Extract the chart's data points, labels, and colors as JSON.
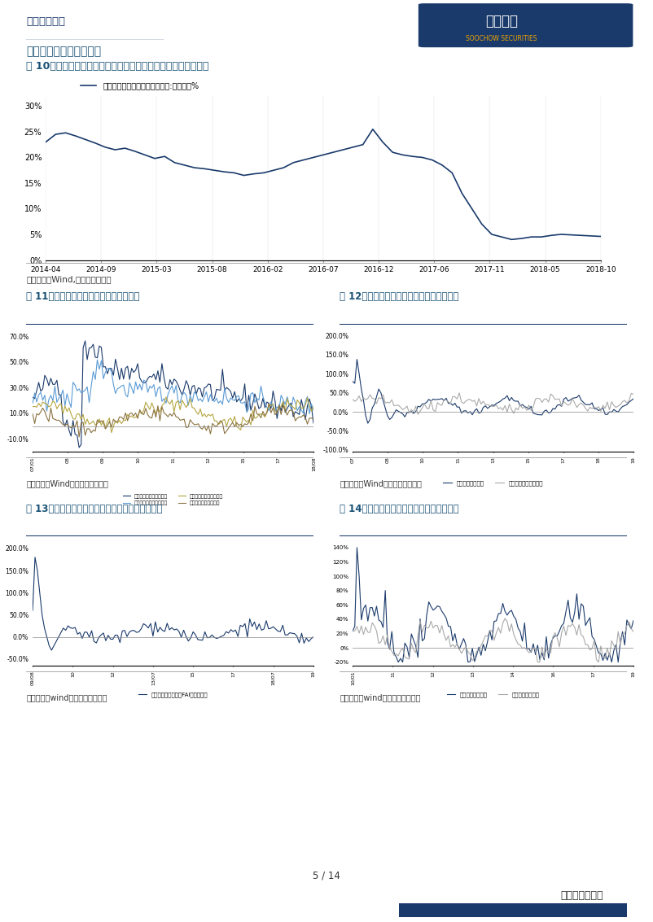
{
  "page_title": "行业点评报告",
  "section_title": "附录三：挖掘机下游数据",
  "fig10_title": "图 10：基础设施建设投资增速略有回升，国家政策放松助力反弹",
  "fig11_title": "图 11：房屋新开工面积累计增速有所上升",
  "fig12_title": "图 12：房地产投资完成额累计增速有所上升",
  "fig13_title": "图 13：铁路固定资产投资额累计同比显著增速上升",
  "fig14_title": "图 14：公路建设固投单月同比增速有所上升",
  "source_text1": "数据来源：Wind,东吴证券研究所",
  "source_text2": "数据来源：Wind，东吴证券研究所",
  "source_text3": "数据来源：wind，东吴证券研究所",
  "page_num": "5 / 14",
  "page_footer": "东吴证券研究所",
  "fig10_x_labels": [
    "2014-04",
    "2014-09",
    "2015-03",
    "2015-08",
    "2016-02",
    "2016-07",
    "2016-12",
    "2017-06",
    "2017-11",
    "2018-05",
    "2018-10"
  ],
  "fig10_legend": "基础设施建设投资（不含电力）:累计同比%",
  "dark_blue": "#1a3a6b",
  "light_blue": "#5b9bd5",
  "olive": "#b5a642",
  "dark_olive": "#8b7340",
  "gray": "#aaaaaa",
  "title_color": "#1a5276"
}
